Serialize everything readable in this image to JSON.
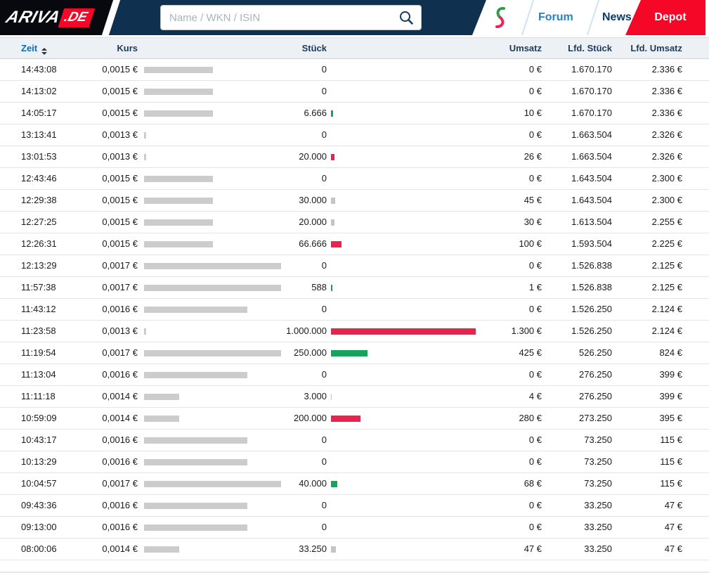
{
  "navbar": {
    "logo_text": "ARIVA",
    "logo_suffix": ".DE",
    "search_placeholder": "Name / WKN / ISIN",
    "links": [
      {
        "label": "Forum"
      },
      {
        "label": "News"
      },
      {
        "label": "Depot"
      }
    ]
  },
  "colors": {
    "accent_red": "#f50728",
    "bar_red": "#e8244e",
    "bar_green": "#17a35d",
    "bar_gray": "#c4c4c4",
    "price_bar_gray": "#cccccc",
    "navy": "#103050",
    "zeit_blue": "#0a6ab4"
  },
  "table": {
    "columns": [
      "Zeit",
      "Kurs",
      "Stück",
      "Umsatz",
      "Lfd. Stück",
      "Lfd. Umsatz"
    ],
    "rows": [
      {
        "time": "14:43:08",
        "price": "0,0015 €",
        "price_bar": 98,
        "volume": "0",
        "volume_bar": 0,
        "volume_color": "none",
        "turnover": "0 €",
        "cum_volume": "1.670.170",
        "cum_turnover": "2.336 €"
      },
      {
        "time": "14:13:02",
        "price": "0,0015 €",
        "price_bar": 98,
        "volume": "0",
        "volume_bar": 0,
        "volume_color": "none",
        "turnover": "0 €",
        "cum_volume": "1.670.170",
        "cum_turnover": "2.336 €"
      },
      {
        "time": "14:05:17",
        "price": "0,0015 €",
        "price_bar": 98,
        "volume": "6.666",
        "volume_bar": 3,
        "volume_color": "green",
        "turnover": "10 €",
        "cum_volume": "1.670.170",
        "cum_turnover": "2.336 €"
      },
      {
        "time": "13:13:41",
        "price": "0,0013 €",
        "price_bar": 3,
        "volume": "0",
        "volume_bar": 0,
        "volume_color": "none",
        "turnover": "0 €",
        "cum_volume": "1.663.504",
        "cum_turnover": "2.326 €"
      },
      {
        "time": "13:01:53",
        "price": "0,0013 €",
        "price_bar": 3,
        "volume": "20.000",
        "volume_bar": 5,
        "volume_color": "red",
        "turnover": "26 €",
        "cum_volume": "1.663.504",
        "cum_turnover": "2.326 €"
      },
      {
        "time": "12:43:46",
        "price": "0,0015 €",
        "price_bar": 98,
        "volume": "0",
        "volume_bar": 0,
        "volume_color": "none",
        "turnover": "0 €",
        "cum_volume": "1.643.504",
        "cum_turnover": "2.300 €"
      },
      {
        "time": "12:29:38",
        "price": "0,0015 €",
        "price_bar": 98,
        "volume": "30.000",
        "volume_bar": 6,
        "volume_color": "gray",
        "turnover": "45 €",
        "cum_volume": "1.643.504",
        "cum_turnover": "2.300 €"
      },
      {
        "time": "12:27:25",
        "price": "0,0015 €",
        "price_bar": 98,
        "volume": "20.000",
        "volume_bar": 5,
        "volume_color": "gray",
        "turnover": "30 €",
        "cum_volume": "1.613.504",
        "cum_turnover": "2.255 €"
      },
      {
        "time": "12:26:31",
        "price": "0,0015 €",
        "price_bar": 98,
        "volume": "66.666",
        "volume_bar": 15,
        "volume_color": "red",
        "turnover": "100 €",
        "cum_volume": "1.593.504",
        "cum_turnover": "2.225 €"
      },
      {
        "time": "12:13:29",
        "price": "0,0017 €",
        "price_bar": 195,
        "volume": "0",
        "volume_bar": 0,
        "volume_color": "none",
        "turnover": "0 €",
        "cum_volume": "1.526.838",
        "cum_turnover": "2.125 €"
      },
      {
        "time": "11:57:38",
        "price": "0,0017 €",
        "price_bar": 195,
        "volume": "588",
        "volume_bar": 2,
        "volume_color": "green",
        "turnover": "1 €",
        "cum_volume": "1.526.838",
        "cum_turnover": "2.125 €"
      },
      {
        "time": "11:43:12",
        "price": "0,0016 €",
        "price_bar": 147,
        "volume": "0",
        "volume_bar": 0,
        "volume_color": "none",
        "turnover": "0 €",
        "cum_volume": "1.526.250",
        "cum_turnover": "2.124 €"
      },
      {
        "time": "11:23:58",
        "price": "0,0013 €",
        "price_bar": 3,
        "volume": "1.000.000",
        "volume_bar": 206,
        "volume_color": "red",
        "turnover": "1.300 €",
        "cum_volume": "1.526.250",
        "cum_turnover": "2.124 €"
      },
      {
        "time": "11:19:54",
        "price": "0,0017 €",
        "price_bar": 195,
        "volume": "250.000",
        "volume_bar": 52,
        "volume_color": "green",
        "turnover": "425 €",
        "cum_volume": "526.250",
        "cum_turnover": "824 €"
      },
      {
        "time": "11:13:04",
        "price": "0,0016 €",
        "price_bar": 147,
        "volume": "0",
        "volume_bar": 0,
        "volume_color": "none",
        "turnover": "0 €",
        "cum_volume": "276.250",
        "cum_turnover": "399 €"
      },
      {
        "time": "11:11:18",
        "price": "0,0014 €",
        "price_bar": 50,
        "volume": "3.000",
        "volume_bar": 1,
        "volume_color": "gray",
        "turnover": "4 €",
        "cum_volume": "276.250",
        "cum_turnover": "399 €"
      },
      {
        "time": "10:59:09",
        "price": "0,0014 €",
        "price_bar": 50,
        "volume": "200.000",
        "volume_bar": 42,
        "volume_color": "red",
        "turnover": "280 €",
        "cum_volume": "273.250",
        "cum_turnover": "395 €"
      },
      {
        "time": "10:43:17",
        "price": "0,0016 €",
        "price_bar": 147,
        "volume": "0",
        "volume_bar": 0,
        "volume_color": "none",
        "turnover": "0 €",
        "cum_volume": "73.250",
        "cum_turnover": "115 €"
      },
      {
        "time": "10:13:29",
        "price": "0,0016 €",
        "price_bar": 147,
        "volume": "0",
        "volume_bar": 0,
        "volume_color": "none",
        "turnover": "0 €",
        "cum_volume": "73.250",
        "cum_turnover": "115 €"
      },
      {
        "time": "10:04:57",
        "price": "0,0017 €",
        "price_bar": 195,
        "volume": "40.000",
        "volume_bar": 9,
        "volume_color": "green",
        "turnover": "68 €",
        "cum_volume": "73.250",
        "cum_turnover": "115 €"
      },
      {
        "time": "09:43:36",
        "price": "0,0016 €",
        "price_bar": 147,
        "volume": "0",
        "volume_bar": 0,
        "volume_color": "none",
        "turnover": "0 €",
        "cum_volume": "33.250",
        "cum_turnover": "47 €"
      },
      {
        "time": "09:13:00",
        "price": "0,0016 €",
        "price_bar": 147,
        "volume": "0",
        "volume_bar": 0,
        "volume_color": "none",
        "turnover": "0 €",
        "cum_volume": "33.250",
        "cum_turnover": "47 €"
      },
      {
        "time": "08:00:06",
        "price": "0,0014 €",
        "price_bar": 50,
        "volume": "33.250",
        "volume_bar": 7,
        "volume_color": "gray",
        "turnover": "47 €",
        "cum_volume": "33.250",
        "cum_turnover": "47 €"
      }
    ]
  }
}
